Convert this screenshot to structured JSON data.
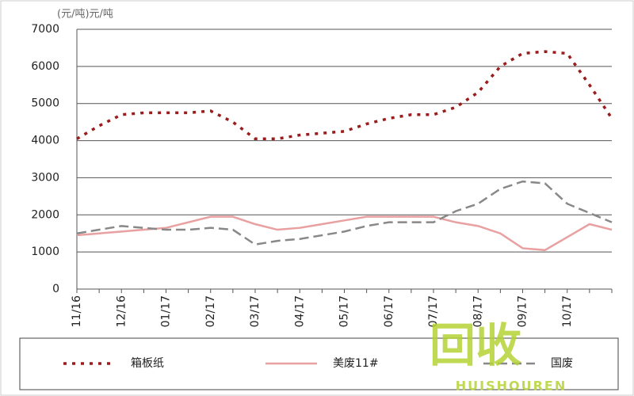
{
  "chart_data": {
    "type": "line",
    "unit_label": "(元/吨)元/吨",
    "categories": [
      "11/16",
      null,
      "12/16",
      null,
      "01/17",
      null,
      "02/17",
      null,
      "03/17",
      null,
      "04/17",
      null,
      "05/17",
      null,
      "06/17",
      null,
      "07/17",
      null,
      "08/17",
      null,
      "09/17",
      null,
      "10/17",
      null,
      null
    ],
    "series": [
      {
        "name": "箱板纸",
        "color": "#9b1c1c",
        "dash": "dotted",
        "values": [
          4050,
          4400,
          4700,
          4750,
          4750,
          4750,
          4800,
          4500,
          4050,
          4050,
          4150,
          4200,
          4250,
          4450,
          4600,
          4700,
          4700,
          4900,
          5300,
          6000,
          6350,
          6400,
          6350,
          5500,
          4600
        ]
      },
      {
        "name": "美废11#",
        "color": "#e8a0a0",
        "dash": "solid",
        "values": [
          1450,
          1500,
          1550,
          1600,
          1650,
          1800,
          1950,
          1950,
          1750,
          1600,
          1650,
          1750,
          1850,
          1950,
          1950,
          1950,
          1950,
          1800,
          1700,
          1500,
          1100,
          1050,
          1400,
          1750,
          1600
        ]
      },
      {
        "name": "国废",
        "color": "#888888",
        "dash": "dashed",
        "values": [
          1500,
          1600,
          1700,
          1650,
          1600,
          1600,
          1650,
          1600,
          1200,
          1300,
          1350,
          1450,
          1550,
          1700,
          1800,
          1800,
          1800,
          2100,
          2300,
          2700,
          2900,
          2850,
          2300,
          2050,
          1800
        ]
      }
    ],
    "ylim": [
      0,
      7000
    ],
    "yticks": [
      0,
      1000,
      2000,
      3000,
      4000,
      5000,
      6000,
      7000
    ],
    "grid": true,
    "watermark": "回收",
    "watermark_sub": "HUISHOUREN"
  }
}
